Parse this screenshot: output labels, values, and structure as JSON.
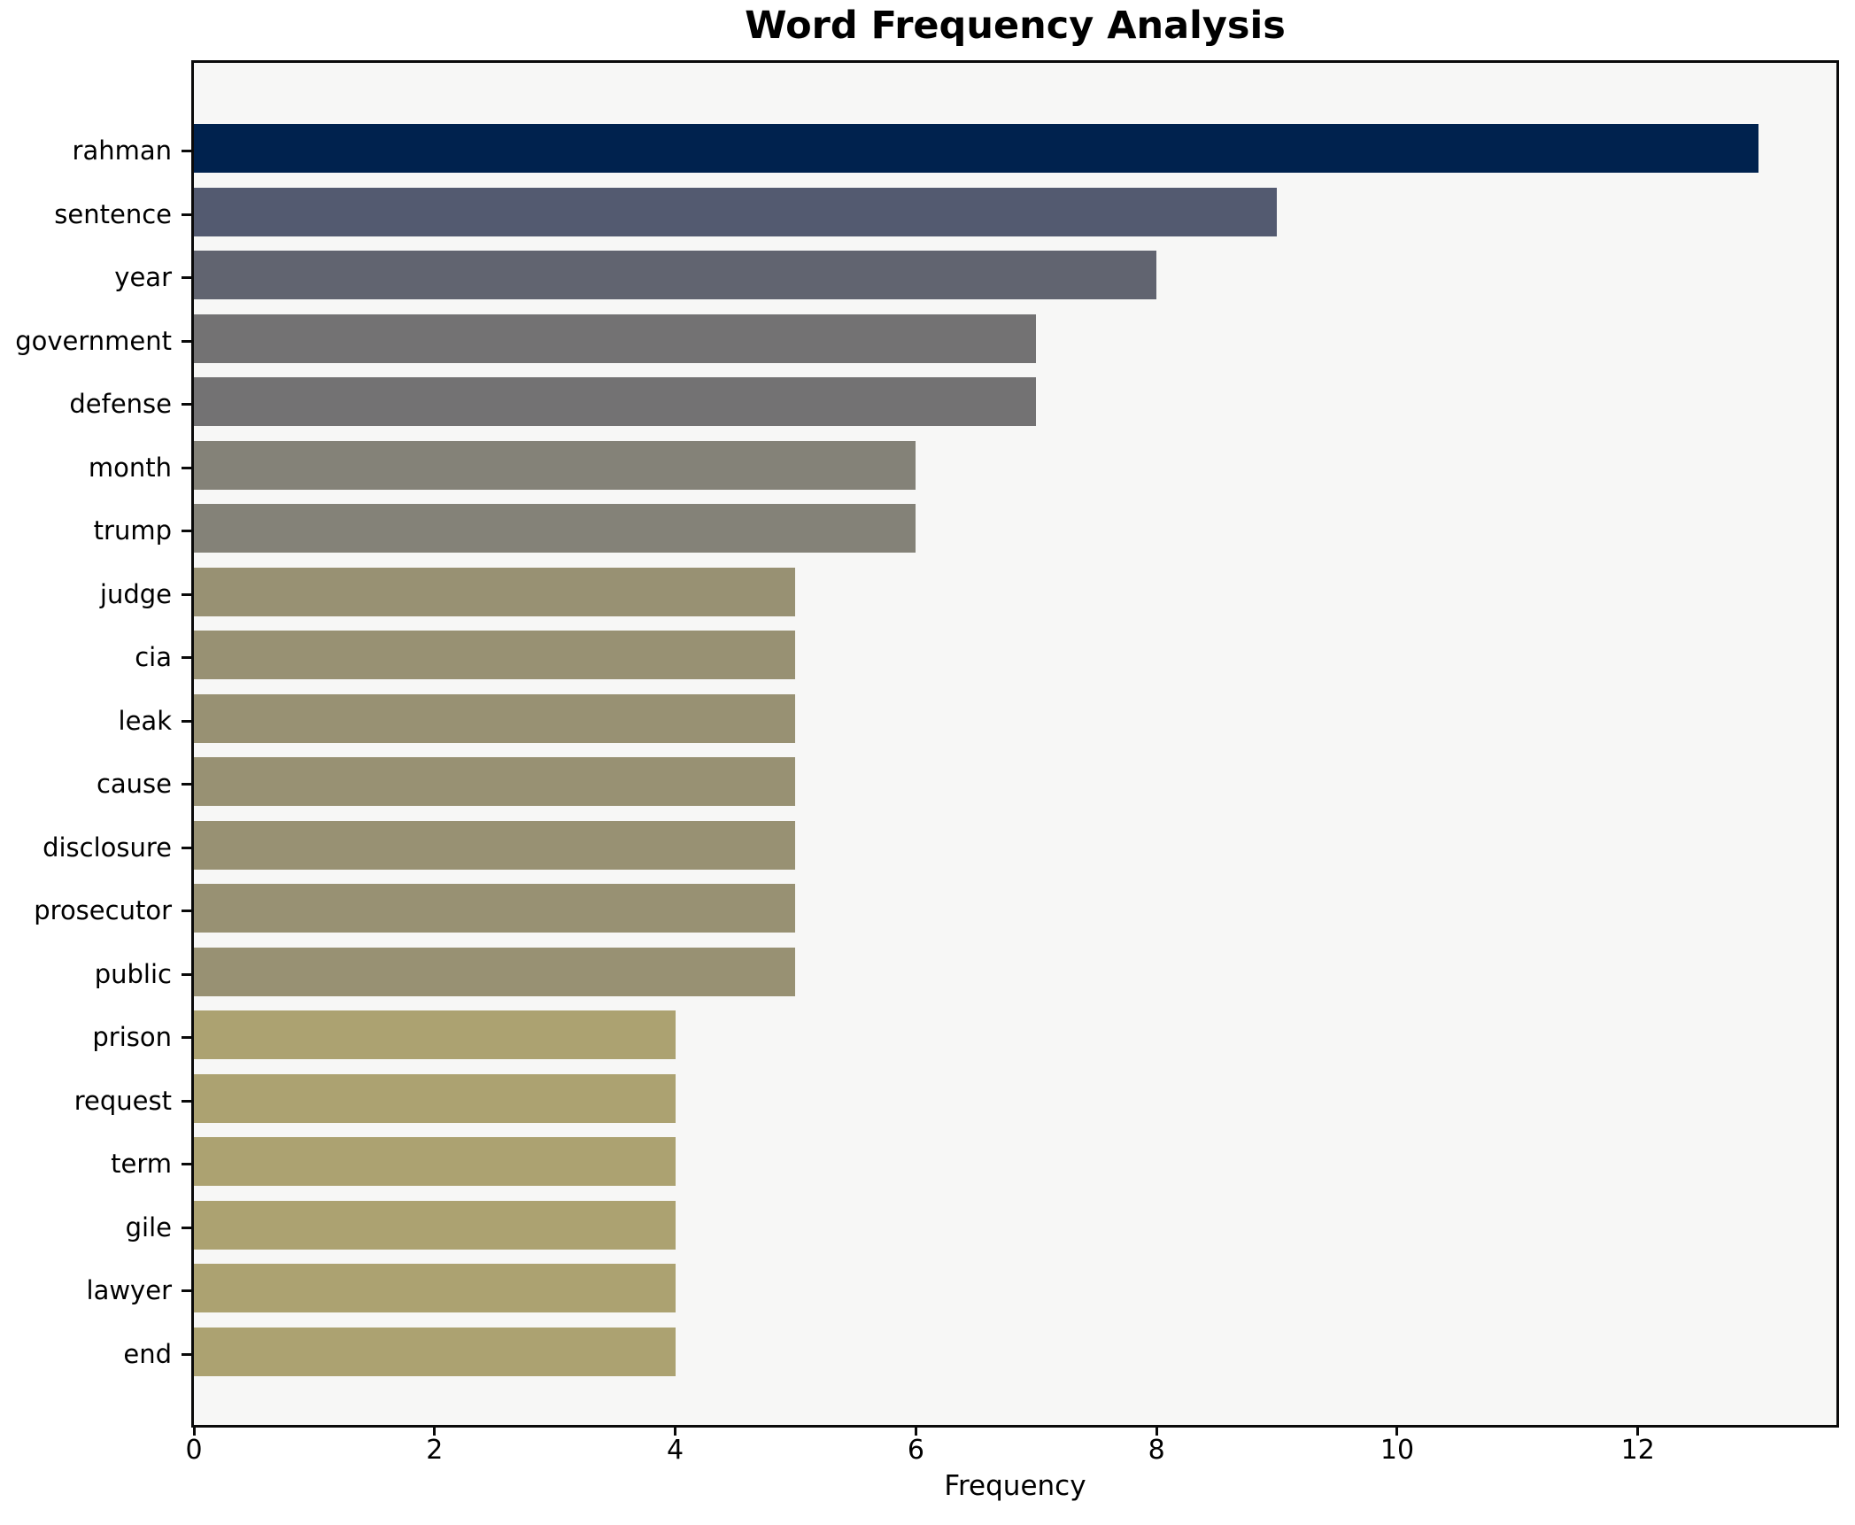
{
  "figure": {
    "title": "Word Frequency Analysis",
    "xlabel": "Frequency"
  },
  "chart_data": {
    "type": "bar",
    "orientation": "horizontal",
    "title": "Word Frequency Analysis",
    "xlabel": "Frequency",
    "ylabel": "",
    "categories": [
      "rahman",
      "sentence",
      "year",
      "government",
      "defense",
      "month",
      "trump",
      "judge",
      "cia",
      "leak",
      "cause",
      "disclosure",
      "prosecutor",
      "public",
      "prison",
      "request",
      "term",
      "gile",
      "lawyer",
      "end"
    ],
    "values": [
      13,
      9,
      8,
      7,
      7,
      6,
      6,
      5,
      5,
      5,
      5,
      5,
      5,
      5,
      4,
      4,
      4,
      4,
      4,
      4
    ],
    "bar_colors": [
      "#00224e",
      "#535a70",
      "#616470",
      "#737273",
      "#737273",
      "#848278",
      "#848278",
      "#989173",
      "#989173",
      "#989173",
      "#989173",
      "#989173",
      "#989173",
      "#989173",
      "#aca271",
      "#aca271",
      "#aca271",
      "#aca271",
      "#aca271",
      "#aca271"
    ],
    "xlim": [
      0,
      13.65
    ],
    "xticks": [
      0,
      2,
      4,
      6,
      8,
      10,
      12
    ],
    "grid": false,
    "legend": null,
    "plot_background": "#f7f7f6",
    "figure_background": "#ffffff",
    "spine_color": "#0a0a0a",
    "text_color": "#000000"
  }
}
